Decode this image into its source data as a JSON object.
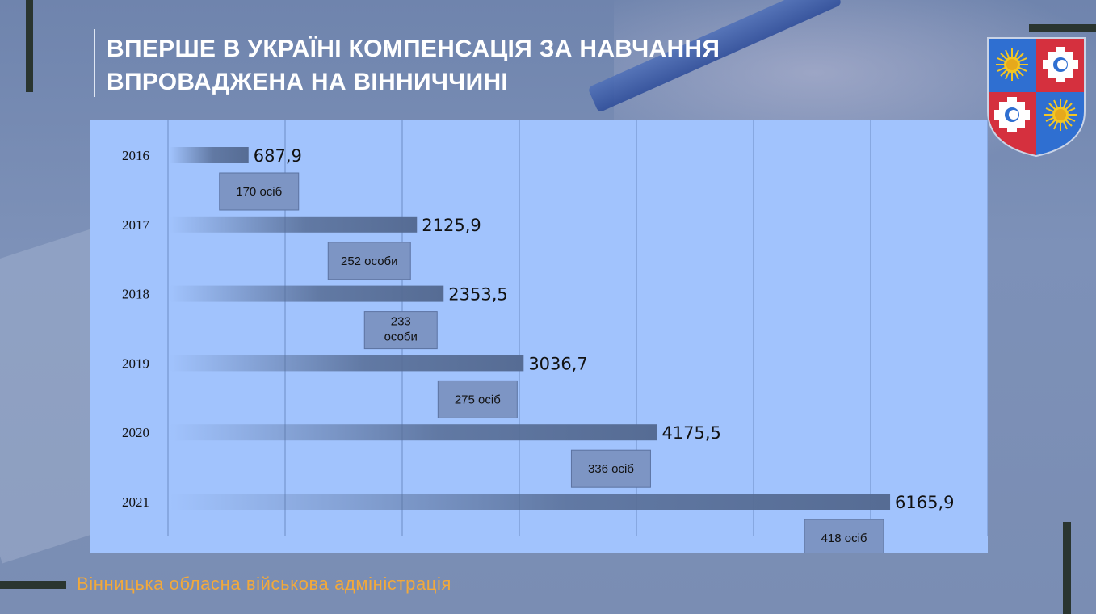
{
  "title": {
    "line1": "ВПЕРШЕ В УКРАЇНІ КОМПЕНСАЦІЯ ЗА НАВЧАННЯ",
    "line2": "ВПРОВАДЖЕНА НА ВІННИЧЧИНІ"
  },
  "footer": {
    "text": "Вінницька обласна військова адміністрація"
  },
  "crest": {
    "icon": "coat-of-arms-icon"
  },
  "chart_data": {
    "type": "bar",
    "orientation": "horizontal",
    "categories": [
      "2016",
      "2017",
      "2018",
      "2019",
      "2020",
      "2021"
    ],
    "values": [
      687.9,
      2125.9,
      2353.5,
      3036.7,
      4175.5,
      6165.9
    ],
    "value_labels": [
      "687,9",
      "2125,9",
      "2353,5",
      "3036,7",
      "4175,5",
      "6165,9"
    ],
    "annotations": [
      "170 осіб",
      "252 особи",
      "233\nособи",
      "275 осіб",
      "336 осіб",
      "418 осіб"
    ],
    "xlim": [
      0,
      7000
    ],
    "grid": true,
    "title": "",
    "xlabel": "",
    "ylabel": ""
  },
  "colors": {
    "panel": "#a1c3fd",
    "bar": "#566c94",
    "badge": "#7d95c4",
    "accent": "#f2a93b"
  }
}
